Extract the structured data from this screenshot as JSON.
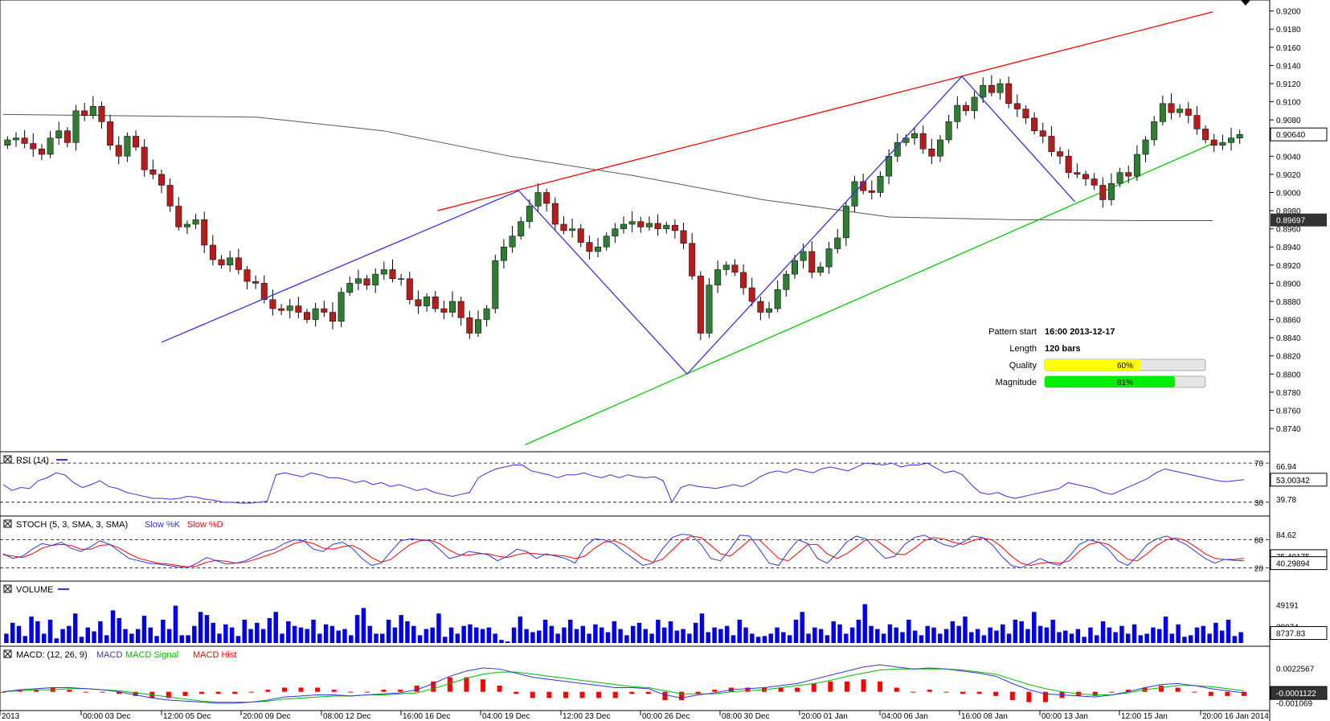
{
  "instrument_panel": {
    "pattern_start_label": "Pattern start",
    "pattern_start_value": "16:00 2013-12-17",
    "length_label": "Length",
    "length_value": "120 bars",
    "quality_label": "Quality",
    "quality_value": "60%",
    "quality_fraction": 0.6,
    "magnitude_label": "Magnitude",
    "magnitude_value": "81%",
    "magnitude_fraction": 0.81
  },
  "colors": {
    "bull": "#2e7d32",
    "bear": "#b71c1c",
    "upper_channel": "#ff0000",
    "lower_channel": "#00cc00",
    "zigzag": "#3333dd",
    "ma": "#555555",
    "volume": "#0000ee",
    "quality_bar": "#ffff00",
    "magnitude_bar": "#00ee00"
  },
  "chart_data": {
    "type": "candlestick",
    "price_axis_ticks": [
      "0.9200",
      "0.9180",
      "0.9160",
      "0.9140",
      "0.9120",
      "0.9100",
      "0.9080",
      "0.9060",
      "0.9040",
      "0.9020",
      "0.9000",
      "0.8980",
      "0.8960",
      "0.8940",
      "0.8920",
      "0.8900",
      "0.8880",
      "0.8860",
      "0.8840",
      "0.8820",
      "0.8800",
      "0.8780",
      "0.8760",
      "0.8740"
    ],
    "price_ylim": [
      0.8725,
      0.9205
    ],
    "current_price_label": "0.90640",
    "ma_price_label": "0.89697",
    "x_tick_labels": [
      "2013",
      "00:00 03 Dec",
      "12:00 05 Dec",
      "20:00 09 Dec",
      "08:00 12 Dec",
      "16:00 16 Dec",
      "04:00 19 Dec",
      "12:00 23 Dec",
      "00:00 26 Dec",
      "08:00 30 Dec",
      "20:00 01 Jan",
      "04:00 06 Jan",
      "16:00 08 Jan",
      "00:00 13 Jan",
      "12:00 15 Jan",
      "20:00 16 Jan 2014"
    ],
    "close_series": [
      0.9058,
      0.906,
      0.9054,
      0.9048,
      0.9042,
      0.906,
      0.9068,
      0.9055,
      0.909,
      0.9085,
      0.9095,
      0.9078,
      0.9052,
      0.904,
      0.9062,
      0.905,
      0.9025,
      0.902,
      0.9008,
      0.8985,
      0.8962,
      0.8965,
      0.897,
      0.8942,
      0.8926,
      0.892,
      0.8928,
      0.8915,
      0.8902,
      0.89,
      0.8882,
      0.8872,
      0.887,
      0.8875,
      0.8868,
      0.886,
      0.8872,
      0.8868,
      0.8858,
      0.889,
      0.89,
      0.8905,
      0.8898,
      0.891,
      0.8915,
      0.8905,
      0.8905,
      0.8882,
      0.8875,
      0.8885,
      0.8872,
      0.8868,
      0.888,
      0.8862,
      0.8845,
      0.886,
      0.8872,
      0.8925,
      0.894,
      0.8952,
      0.8968,
      0.8985,
      0.9,
      0.8988,
      0.8965,
      0.8958,
      0.896,
      0.8945,
      0.8935,
      0.894,
      0.8952,
      0.896,
      0.8965,
      0.8968,
      0.8962,
      0.8966,
      0.896,
      0.8964,
      0.8958,
      0.8944,
      0.8908,
      0.8845,
      0.8898,
      0.8915,
      0.892,
      0.8912,
      0.8895,
      0.888,
      0.8868,
      0.8872,
      0.8893,
      0.891,
      0.8925,
      0.8935,
      0.8912,
      0.8918,
      0.8938,
      0.895,
      0.8985,
      0.9012,
      0.9002,
      0.9,
      0.9018,
      0.904,
      0.9055,
      0.906,
      0.9065,
      0.9048,
      0.904,
      0.9058,
      0.9078,
      0.9096,
      0.909,
      0.9105,
      0.9118,
      0.911,
      0.912,
      0.9098,
      0.9092,
      0.9082,
      0.9068,
      0.9062,
      0.9045,
      0.904,
      0.9022,
      0.902,
      0.9015,
      0.9008,
      0.8992,
      0.901,
      0.9022,
      0.9018,
      0.9042,
      0.9058,
      0.9078,
      0.9098,
      0.9088,
      0.9092,
      0.9085,
      0.907,
      0.9058,
      0.9052,
      0.9055,
      0.906,
      0.9064
    ],
    "zigzag_points": [
      [
        0.125,
        0.8835
      ],
      [
        0.407,
        0.9002
      ],
      [
        0.54,
        0.88
      ],
      [
        0.757,
        0.9128
      ],
      [
        0.846,
        0.899
      ]
    ],
    "upper_channel": {
      "start": [
        0.343,
        0.898
      ],
      "end": [
        0.955,
        0.9199
      ]
    },
    "lower_channel": {
      "start": [
        0.412,
        0.8722
      ],
      "end": [
        0.955,
        0.9054
      ]
    },
    "ma_curve": [
      [
        0.0,
        0.9086
      ],
      [
        0.2,
        0.9083
      ],
      [
        0.3,
        0.9068
      ],
      [
        0.4,
        0.904
      ],
      [
        0.5,
        0.9018
      ],
      [
        0.6,
        0.8992
      ],
      [
        0.7,
        0.8973
      ],
      [
        0.8,
        0.897
      ],
      [
        0.9,
        0.8969
      ],
      [
        0.955,
        0.8969
      ]
    ],
    "rsi": {
      "label": "RSI (14)",
      "ylim": [
        20,
        75
      ],
      "level_high_label": "70",
      "level_low_label": "30",
      "axis_high": "66.94",
      "axis_value": "53.00342",
      "axis_low": "39.78",
      "values": [
        48,
        42,
        45,
        44,
        52,
        55,
        60,
        58,
        50,
        45,
        48,
        52,
        46,
        44,
        40,
        38,
        36,
        34,
        34,
        33,
        34,
        36,
        35,
        33,
        32,
        30,
        30,
        29,
        29,
        30,
        31,
        58,
        60,
        58,
        56,
        60,
        58,
        55,
        55,
        53,
        50,
        52,
        48,
        50,
        46,
        48,
        45,
        42,
        44,
        40,
        38,
        36,
        38,
        40,
        55,
        60,
        64,
        66,
        68,
        68,
        62,
        60,
        58,
        55,
        58,
        58,
        60,
        57,
        55,
        58,
        55,
        58,
        56,
        55,
        56,
        52,
        30,
        45,
        48,
        46,
        45,
        44,
        46,
        48,
        46,
        50,
        56,
        60,
        62,
        60,
        64,
        62,
        60,
        64,
        66,
        64,
        62,
        66,
        70,
        69,
        68,
        70,
        66,
        68,
        68,
        70,
        65,
        60,
        62,
        58,
        48,
        40,
        38,
        40,
        36,
        34,
        36,
        38,
        40,
        42,
        44,
        50,
        48,
        46,
        44,
        40,
        38,
        42,
        46,
        50,
        54,
        60,
        64,
        62,
        60,
        58,
        56,
        54,
        52,
        51,
        52,
        53
      ]
    },
    "stoch": {
      "label": "STOCH (5, 3, SMA, 3, SMA)",
      "legend_slow_k": "Slow %K",
      "legend_slow_d": "Slow %D",
      "ylim": [
        0,
        100
      ],
      "level_high_label": "80",
      "level_low_label": "20",
      "axis_high": "84.62",
      "axis_value_k": "35.40175",
      "axis_value_d": "40.29894",
      "slow_k": [
        50,
        40,
        45,
        60,
        72,
        68,
        75,
        62,
        55,
        65,
        78,
        70,
        55,
        40,
        35,
        30,
        28,
        25,
        22,
        20,
        30,
        42,
        35,
        28,
        30,
        35,
        45,
        55,
        60,
        72,
        80,
        78,
        60,
        55,
        70,
        75,
        62,
        40,
        25,
        30,
        55,
        78,
        82,
        80,
        78,
        60,
        40,
        45,
        55,
        52,
        48,
        35,
        45,
        60,
        55,
        40,
        50,
        45,
        40,
        30,
        65,
        82,
        80,
        72,
        55,
        40,
        25,
        30,
        60,
        85,
        92,
        90,
        70,
        40,
        35,
        60,
        90,
        88,
        60,
        30,
        25,
        55,
        80,
        72,
        40,
        30,
        50,
        75,
        88,
        82,
        60,
        40,
        45,
        70,
        85,
        90,
        80,
        70,
        65,
        75,
        88,
        85,
        70,
        45,
        25,
        20,
        30,
        40,
        30,
        25,
        45,
        70,
        80,
        75,
        60,
        35,
        25,
        45,
        70,
        82,
        88,
        80,
        70,
        55,
        40,
        30,
        38,
        36,
        35
      ],
      "slow_d": [
        48,
        45,
        42,
        50,
        62,
        68,
        70,
        68,
        60,
        60,
        68,
        70,
        62,
        50,
        40,
        35,
        30,
        28,
        25,
        22,
        24,
        32,
        36,
        34,
        30,
        32,
        38,
        45,
        52,
        62,
        72,
        77,
        72,
        62,
        60,
        65,
        68,
        58,
        42,
        32,
        38,
        55,
        70,
        78,
        80,
        72,
        58,
        48,
        47,
        50,
        50,
        45,
        42,
        48,
        52,
        50,
        48,
        47,
        45,
        40,
        45,
        62,
        75,
        78,
        70,
        55,
        40,
        32,
        38,
        58,
        78,
        88,
        85,
        68,
        50,
        45,
        62,
        80,
        80,
        60,
        40,
        35,
        52,
        70,
        70,
        50,
        40,
        50,
        65,
        80,
        80,
        65,
        50,
        48,
        62,
        78,
        85,
        82,
        75,
        70,
        78,
        84,
        80,
        65,
        45,
        30,
        25,
        30,
        32,
        30,
        35,
        55,
        70,
        75,
        70,
        55,
        38,
        35,
        50,
        68,
        80,
        84,
        78,
        65,
        50,
        40,
        38,
        38,
        40
      ]
    },
    "volume": {
      "label": "VOLUME",
      "ylim": [
        0,
        62000
      ],
      "axis_high": "49191",
      "axis_mid": "20974",
      "axis_value": "8737.83",
      "values": [
        12000,
        26000,
        22000,
        9000,
        34000,
        28000,
        12000,
        30000,
        6000,
        18000,
        22000,
        38000,
        8000,
        20000,
        15000,
        28000,
        10000,
        42000,
        32000,
        18000,
        12000,
        18000,
        35000,
        20000,
        9000,
        30000,
        18000,
        48000,
        10000,
        10000,
        22000,
        40000,
        36000,
        26000,
        12000,
        24000,
        20000,
        9000,
        30000,
        18000,
        26000,
        18000,
        32000,
        40000,
        12000,
        28000,
        22000,
        20000,
        18000,
        30000,
        12000,
        24000,
        22000,
        16000,
        18000,
        10000,
        36000,
        45000,
        22000,
        12000,
        12000,
        30000,
        20000,
        36000,
        28000,
        22000,
        10000,
        18000,
        20000,
        38000,
        8000,
        20000,
        12000,
        22000,
        24000,
        20000,
        18000,
        20000,
        12000,
        4000,
        2000,
        20000,
        34000,
        18000,
        14000,
        16000,
        30000,
        22000,
        12000,
        20000,
        30000,
        18000,
        22000,
        12000,
        24000,
        20000,
        14000,
        28000,
        18000,
        10000,
        22000,
        26000,
        18000,
        12000,
        30000,
        20000,
        28000,
        16000,
        18000,
        12000,
        26000,
        38000,
        14000,
        20000,
        18000,
        22000,
        10000,
        30000,
        20000,
        12000,
        8000,
        9000
      ],
      "volume_b": [
        12000,
        20000,
        14000,
        10000,
        30000,
        40000,
        12000,
        20000,
        18000,
        10000,
        28000,
        24000,
        12000,
        20000,
        30000,
        50000,
        22000,
        18000,
        12000,
        24000,
        20000,
        14000,
        30000,
        16000,
        10000,
        22000,
        20000,
        12000,
        18000,
        28000,
        22000,
        34000,
        14000,
        18000,
        10000,
        20000,
        16000,
        24000,
        12000,
        30000,
        28000,
        18000,
        40000,
        22000,
        20000,
        30000,
        14000,
        16000,
        12000,
        18000,
        8000,
        20000,
        10000,
        28000,
        20000,
        14000,
        22000,
        12000,
        24000,
        10000,
        12000,
        20000,
        18000,
        34000,
        12000,
        24000,
        8000,
        10000,
        20000,
        22000,
        12000,
        26000,
        16000,
        30000,
        9000,
        14000
      ]
    },
    "macd": {
      "label": "MACD: (12, 26, 9)",
      "legend_macd": "MACD",
      "legend_signal": "MACD Signal",
      "legend_hist": "MACD Hist",
      "ylim": [
        -0.0015,
        0.003
      ],
      "axis_high": "0.0022567",
      "axis_value": "-0.0001122",
      "axis_low": "-0.001069",
      "macd_line": [
        0.0,
        0.0002,
        0.0003,
        0.0004,
        0.0004,
        0.0003,
        0.0002,
        0.0,
        -0.0003,
        -0.0006,
        -0.0008,
        -0.0009,
        -0.001,
        -0.0011,
        -0.0011,
        -0.001,
        -0.0008,
        -0.0005,
        -0.0004,
        -0.0003,
        -0.0003,
        -0.0004,
        -0.0003,
        -0.0002,
        -0.0001,
        0.0002,
        0.0008,
        0.0015,
        0.002,
        0.0023,
        0.0022,
        0.0018,
        0.0014,
        0.0012,
        0.001,
        0.0008,
        0.0006,
        0.0004,
        0.0004,
        0.0003,
        -0.0003,
        -0.0006,
        -0.0003,
        -0.0001,
        0.0002,
        0.0003,
        0.0004,
        0.0006,
        0.0008,
        0.0012,
        0.0016,
        0.002,
        0.0024,
        0.0026,
        0.0024,
        0.0022,
        0.0023,
        0.0022,
        0.002,
        0.0018,
        0.0015,
        0.0008,
        0.0002,
        -0.0002,
        -0.0003,
        -0.0004,
        -0.0005,
        -0.0003,
        0.0,
        0.0004,
        0.0007,
        0.0008,
        0.0006,
        0.0003,
        0.0001,
        -0.0001
      ],
      "signal_line": [
        0.0,
        0.0001,
        0.0002,
        0.0002,
        0.0003,
        0.0003,
        0.0002,
        0.0001,
        -0.0001,
        -0.0003,
        -0.0005,
        -0.0007,
        -0.0009,
        -0.001,
        -0.001,
        -0.001,
        -0.0009,
        -0.0007,
        -0.0006,
        -0.0005,
        -0.0004,
        -0.0004,
        -0.0003,
        -0.0003,
        -0.0002,
        -0.0001,
        0.0003,
        0.0008,
        0.0013,
        0.0017,
        0.0019,
        0.0019,
        0.0017,
        0.0015,
        0.0013,
        0.0011,
        0.0009,
        0.0007,
        0.0005,
        0.0004,
        0.0001,
        -0.0002,
        -0.0002,
        -0.0002,
        0.0,
        0.0001,
        0.0002,
        0.0004,
        0.0006,
        0.0008,
        0.0011,
        0.0015,
        0.0018,
        0.0021,
        0.0022,
        0.0022,
        0.0022,
        0.0022,
        0.0021,
        0.0019,
        0.0017,
        0.0012,
        0.0007,
        0.0003,
        0.0,
        -0.0002,
        -0.0003,
        -0.0003,
        -0.0001,
        0.0002,
        0.0004,
        0.0006,
        0.0006,
        0.0005,
        0.0003,
        0.0001
      ]
    }
  }
}
